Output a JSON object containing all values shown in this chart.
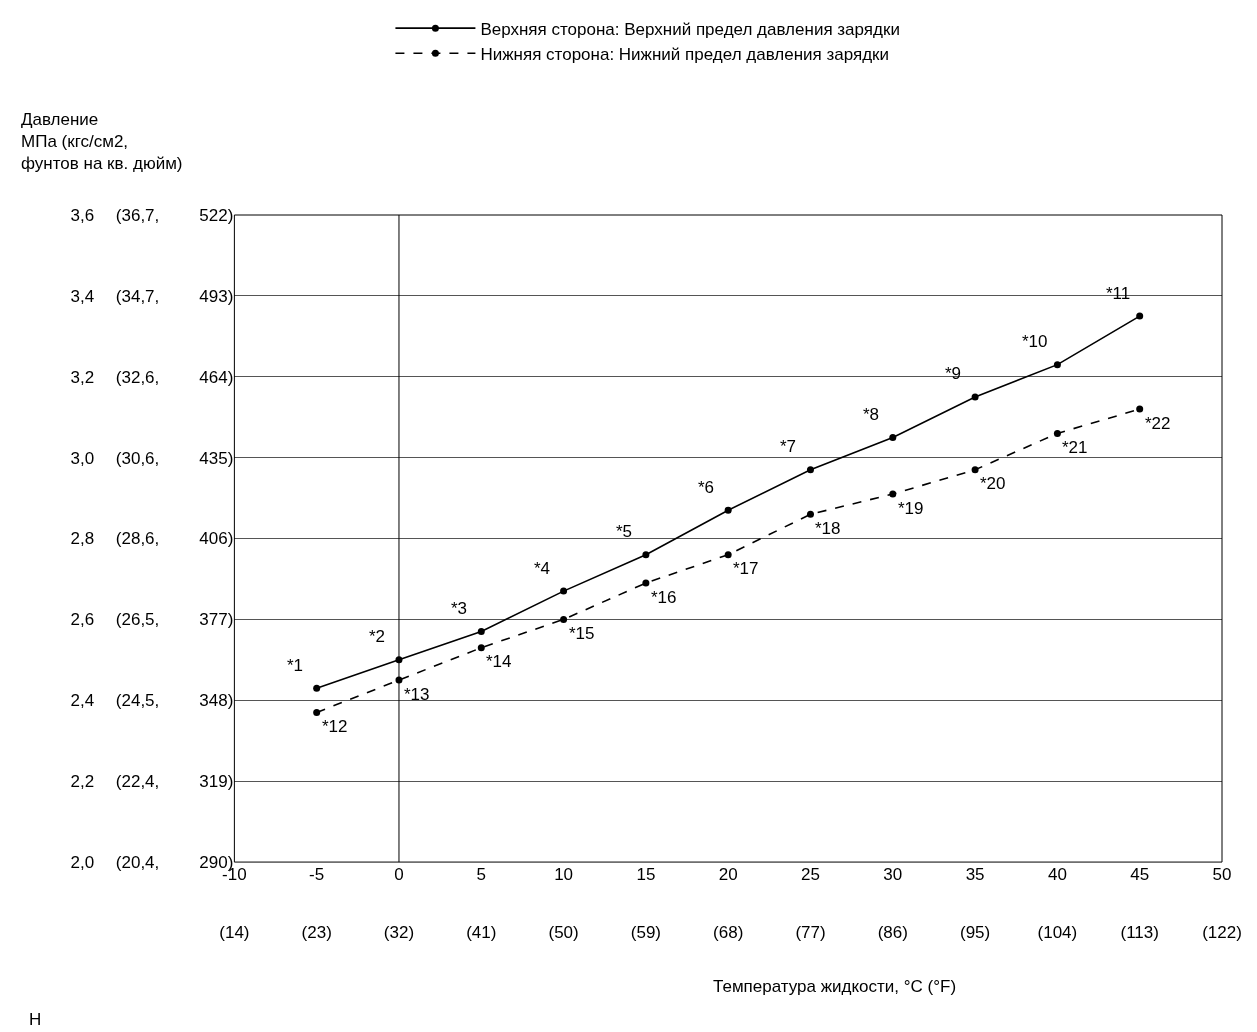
{
  "chart_data": {
    "type": "line",
    "ylabel": "Давление\nМПа (кгс/см2,\nфунтов на кв. дюйм)",
    "xlabel": "Температура жидкости, °C (°F)",
    "x": [
      -5,
      0,
      5,
      10,
      15,
      20,
      25,
      30,
      35,
      40,
      45
    ],
    "series": [
      {
        "name": "Верхняя сторона: Верхний предел давления зарядки",
        "color": "#000000",
        "line_style": "solid",
        "values": [
          2.43,
          2.5,
          2.57,
          2.67,
          2.76,
          2.87,
          2.97,
          3.05,
          3.15,
          3.23,
          3.35
        ]
      },
      {
        "name": "Нижняя сторона: Нижний предел давления зарядки",
        "color": "#000000",
        "line_style": "dashed",
        "values": [
          2.37,
          2.45,
          2.53,
          2.6,
          2.69,
          2.76,
          2.86,
          2.91,
          2.97,
          3.06,
          3.12
        ]
      }
    ],
    "marker": "circle",
    "xlim": [
      -10,
      50
    ],
    "ylim": [
      2.0,
      3.6
    ],
    "xticks": [
      -10,
      -5,
      0,
      5,
      10,
      15,
      20,
      25,
      30,
      35,
      40,
      45,
      50
    ],
    "x2lim": [
      14,
      122
    ],
    "x2ticks": [
      {
        "value": 14,
        "label": "(14)"
      },
      {
        "value": 23,
        "label": "(23)"
      },
      {
        "value": 32,
        "label": "(32)"
      },
      {
        "value": 41,
        "label": "(41)"
      },
      {
        "value": 50,
        "label": "(50)"
      },
      {
        "value": 59,
        "label": "(59)"
      },
      {
        "value": 68,
        "label": "(68)"
      },
      {
        "value": 77,
        "label": "(77)"
      },
      {
        "value": 86,
        "label": "(86)"
      },
      {
        "value": 95,
        "label": "(95)"
      },
      {
        "value": 104,
        "label": "(104)"
      },
      {
        "value": 113,
        "label": "(113)"
      },
      {
        "value": 122,
        "label": "(122)"
      }
    ],
    "yticks": [
      {
        "value": 2.0,
        "label": "2,0"
      },
      {
        "value": 2.2,
        "label": "2,2"
      },
      {
        "value": 2.4,
        "label": "2,4"
      },
      {
        "value": 2.6,
        "label": "2,6"
      },
      {
        "value": 2.8,
        "label": "2,8"
      },
      {
        "value": 3.0,
        "label": "3,0"
      },
      {
        "value": 3.2,
        "label": "3,2"
      },
      {
        "value": 3.4,
        "label": "3,4"
      },
      {
        "value": 3.6,
        "label": "3,6"
      }
    ],
    "y2lim": [
      20.39,
      36.71
    ],
    "y2ticks": [
      {
        "value": 20.39,
        "label": "(20,4,"
      },
      {
        "value": 22.43,
        "label": "(22,4,"
      },
      {
        "value": 24.47,
        "label": "(24,5,"
      },
      {
        "value": 26.51,
        "label": "(26,5,"
      },
      {
        "value": 28.55,
        "label": "(28,6,"
      },
      {
        "value": 30.59,
        "label": "(30,6,"
      },
      {
        "value": 32.63,
        "label": "(32,6,"
      },
      {
        "value": 34.67,
        "label": "(34,7,"
      },
      {
        "value": 36.71,
        "label": "(36,7,"
      }
    ],
    "y3lim": [
      290.08,
      522.14
    ],
    "y3ticks": [
      {
        "value": 290.08,
        "label": "290)"
      },
      {
        "value": 319.09,
        "label": "319)"
      },
      {
        "value": 348.1,
        "label": "348)"
      },
      {
        "value": 377.1,
        "label": "377)"
      },
      {
        "value": 406.11,
        "label": "406)"
      },
      {
        "value": 435.12,
        "label": "435)"
      },
      {
        "value": 464.13,
        "label": "464)"
      },
      {
        "value": 493.14,
        "label": "493)"
      },
      {
        "value": 522.14,
        "label": "522)"
      }
    ],
    "grid": "y",
    "legend": "top",
    "ref_lines": [
      {
        "axis": "x",
        "value": 0,
        "color": "#000000"
      }
    ],
    "annotations": [
      {
        "text": "*1",
        "x": -5,
        "y": 2.43
      },
      {
        "text": "*2",
        "x": 0,
        "y": 2.5
      },
      {
        "text": "*3",
        "x": 5,
        "y": 2.57
      },
      {
        "text": "*4",
        "x": 10,
        "y": 2.67
      },
      {
        "text": "*5",
        "x": 15,
        "y": 2.76
      },
      {
        "text": "*6",
        "x": 20,
        "y": 2.87
      },
      {
        "text": "*7",
        "x": 25,
        "y": 2.97
      },
      {
        "text": "*8",
        "x": 30,
        "y": 3.05
      },
      {
        "text": "*9",
        "x": 35,
        "y": 3.15
      },
      {
        "text": "*10",
        "x": 40,
        "y": 3.23
      },
      {
        "text": "*11",
        "x": 45,
        "y": 3.35
      },
      {
        "text": "*12",
        "x": -5,
        "y": 2.37
      },
      {
        "text": "*13",
        "x": 0,
        "y": 2.45
      },
      {
        "text": "*14",
        "x": 5,
        "y": 2.53
      },
      {
        "text": "*15",
        "x": 10,
        "y": 2.6
      },
      {
        "text": "*16",
        "x": 15,
        "y": 2.69
      },
      {
        "text": "*17",
        "x": 20,
        "y": 2.76
      },
      {
        "text": "*18",
        "x": 25,
        "y": 2.86
      },
      {
        "text": "*19",
        "x": 30,
        "y": 2.91
      },
      {
        "text": "*20",
        "x": 35,
        "y": 2.97
      },
      {
        "text": "*21",
        "x": 40,
        "y": 3.06
      },
      {
        "text": "*22",
        "x": 45,
        "y": 3.12
      },
      "Н"
    ]
  }
}
